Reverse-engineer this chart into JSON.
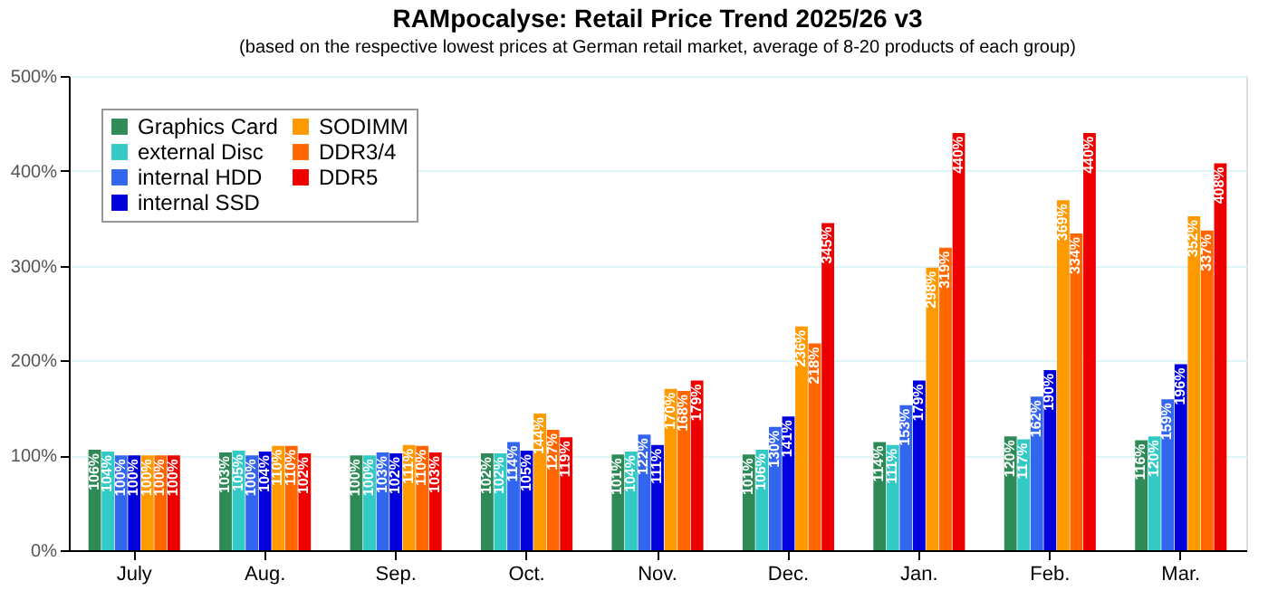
{
  "chart_data": {
    "type": "bar",
    "title": "RAMpocalyse: Retail Price Trend 2025/26 v3",
    "subtitle": "(based on the respective lowest prices at German retail market, average of 8-20 products of each group)",
    "categories": [
      "July",
      "Aug.",
      "Sep.",
      "Oct.",
      "Nov.",
      "Dec.",
      "Jan.",
      "Feb.",
      "Mar."
    ],
    "series": [
      {
        "name": "Graphics Card",
        "color": "#2e8b57",
        "values": [
          106,
          103,
          100,
          102,
          101,
          101,
          114,
          120,
          116
        ],
        "value_labels": [
          "106%",
          "103%",
          "100%",
          "102%",
          "101%",
          "101%",
          "114%",
          "120%",
          "116%"
        ]
      },
      {
        "name": "external Disc",
        "color": "#33c9c4",
        "values": [
          104,
          105,
          100,
          102,
          104,
          106,
          111,
          117,
          120
        ],
        "value_labels": [
          "104%",
          "105%",
          "100%",
          "102%",
          "104%",
          "106%",
          "111%",
          "117%",
          "120%"
        ]
      },
      {
        "name": "internal HDD",
        "color": "#3366ee",
        "values": [
          100,
          100,
          103,
          114,
          122,
          130,
          153,
          162,
          159
        ],
        "value_labels": [
          "100%",
          "100%",
          "103%",
          "114%",
          "122%",
          "130%",
          "153%",
          "162%",
          "159%"
        ]
      },
      {
        "name": "internal SSD",
        "color": "#0000dd",
        "values": [
          100,
          104,
          102,
          105,
          111,
          141,
          179,
          190,
          196
        ],
        "value_labels": [
          "100%",
          "104%",
          "102%",
          "105%",
          "111%",
          "141%",
          "179%",
          "190%",
          "196%"
        ]
      },
      {
        "name": "SODIMM",
        "color": "#ff9900",
        "values": [
          100,
          110,
          111,
          144,
          170,
          236,
          298,
          369,
          352
        ],
        "value_labels": [
          "100%",
          "110%",
          "111%",
          "144%",
          "170%",
          "236%",
          "298%",
          "369%",
          "352%"
        ]
      },
      {
        "name": "DDR3/4",
        "color": "#ff6600",
        "values": [
          100,
          110,
          110,
          127,
          168,
          218,
          319,
          334,
          337
        ],
        "value_labels": [
          "100%",
          "110%",
          "110%",
          "127%",
          "168%",
          "218%",
          "319%",
          "334%",
          "337%"
        ]
      },
      {
        "name": "DDR5",
        "color": "#ee0000",
        "values": [
          100,
          102,
          103,
          119,
          179,
          345,
          440,
          440,
          408
        ],
        "value_labels": [
          "100%",
          "102%",
          "103%",
          "119%",
          "179%",
          "345%",
          "440%",
          "440%",
          "408%"
        ]
      }
    ],
    "ylim": [
      0,
      500
    ],
    "yticks": [
      {
        "value": 0,
        "label": "0%"
      },
      {
        "value": 100,
        "label": "100%"
      },
      {
        "value": 200,
        "label": "200%"
      },
      {
        "value": 300,
        "label": "300%"
      },
      {
        "value": 400,
        "label": "400%"
      },
      {
        "value": 500,
        "label": "500%"
      }
    ],
    "grid": "y",
    "legend": "top left"
  }
}
